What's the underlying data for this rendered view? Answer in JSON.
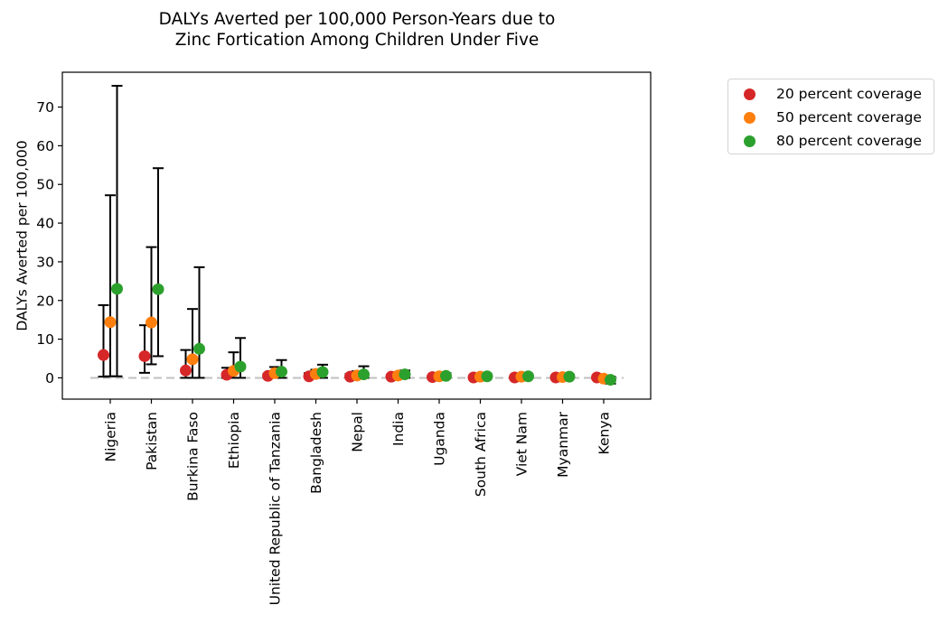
{
  "chart_data": {
    "type": "scatter",
    "title": "DALYs Averted per 100,000 Person-Years due to\nZinc Fortication Among Children Under Five",
    "xlabel": "",
    "ylabel": "DALYs Averted per 100,000",
    "ylim": [
      -5.5,
      79
    ],
    "yticks": [
      0,
      10,
      20,
      30,
      40,
      50,
      60,
      70
    ],
    "categories": [
      "Nigeria",
      "Pakistan",
      "Burkina Faso",
      "Ethiopia",
      "United Republic of Tanzania",
      "Bangladesh",
      "Nepal",
      "India",
      "Uganda",
      "South Africa",
      "Viet Nam",
      "Myanmar",
      "Kenya"
    ],
    "reference_line": 0,
    "legend_position": "outside upper right",
    "grid": false,
    "series": [
      {
        "name": "20 percent coverage",
        "color": "#d62728",
        "values": [
          5.9,
          5.6,
          1.9,
          0.8,
          0.5,
          0.4,
          0.3,
          0.3,
          0.2,
          0.1,
          0.1,
          0.1,
          0.1
        ],
        "lower": [
          0.3,
          1.3,
          0.0,
          0.0,
          0.0,
          0.0,
          0.0,
          0.0,
          0.0,
          0.0,
          0.0,
          0.0,
          -0.3
        ],
        "upper": [
          18.8,
          13.6,
          7.2,
          2.6,
          1.0,
          1.2,
          1.0,
          0.7,
          0.5,
          0.3,
          0.3,
          0.3,
          0.4
        ]
      },
      {
        "name": "50 percent coverage",
        "color": "#ff7f0e",
        "values": [
          14.4,
          14.3,
          4.8,
          1.8,
          1.2,
          1.0,
          0.6,
          0.6,
          0.4,
          0.3,
          0.3,
          0.2,
          -0.2
        ],
        "lower": [
          0.4,
          3.5,
          0.0,
          0.0,
          0.0,
          0.0,
          0.0,
          0.0,
          0.0,
          0.0,
          0.0,
          0.0,
          -0.8
        ],
        "upper": [
          47.2,
          33.8,
          17.8,
          6.6,
          2.8,
          2.1,
          1.7,
          1.3,
          0.8,
          0.6,
          0.6,
          0.5,
          0.3
        ]
      },
      {
        "name": "80 percent coverage",
        "color": "#2ca02c",
        "values": [
          23.0,
          22.9,
          7.5,
          2.9,
          1.6,
          1.5,
          0.9,
          0.9,
          0.5,
          0.4,
          0.4,
          0.3,
          -0.5
        ],
        "lower": [
          0.4,
          5.6,
          0.0,
          0.0,
          0.0,
          0.0,
          0.0,
          0.0,
          0.0,
          0.0,
          0.0,
          0.0,
          -1.5
        ],
        "upper": [
          75.5,
          54.2,
          28.6,
          10.3,
          4.6,
          3.4,
          3.0,
          1.9,
          1.2,
          0.9,
          0.9,
          0.8,
          0.3
        ]
      }
    ]
  }
}
